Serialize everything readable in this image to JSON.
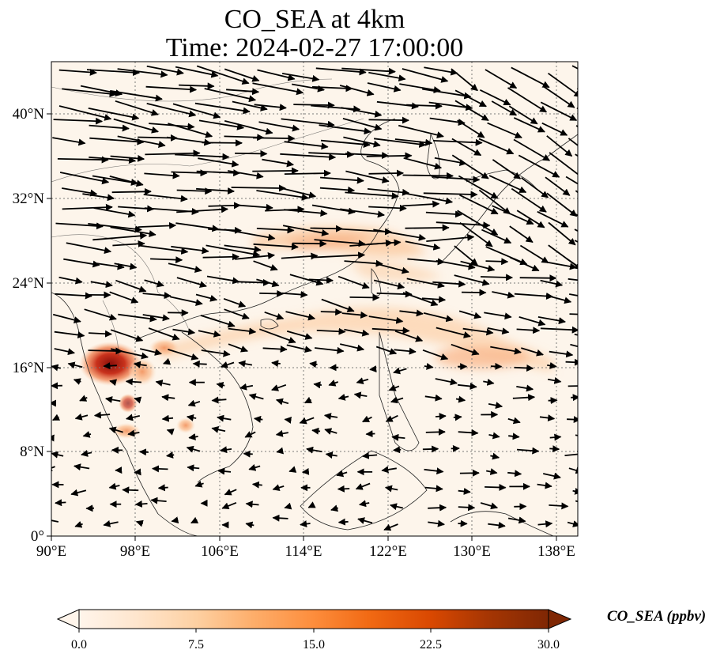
{
  "title": {
    "line1": "CO_SEA at 4km",
    "line2": "Time: 2024-02-27 17:00:00"
  },
  "map": {
    "lon_ticks": [
      "90°E",
      "98°E",
      "106°E",
      "114°E",
      "122°E",
      "130°E",
      "138°E"
    ],
    "lat_ticks": [
      "40°N",
      "32°N",
      "24°N",
      "16°N",
      "8°N",
      "0°"
    ],
    "lon_range": [
      90,
      140
    ],
    "lat_range": [
      0,
      45
    ],
    "gridlines": true,
    "field_colors": {
      "background": "#fdf5eb",
      "low": "#fde5cb",
      "mid": "#fcb98a",
      "high": "#e0542a",
      "peak": "#8b0f0a"
    },
    "vector_color": "#000000"
  },
  "colorbar": {
    "label": "CO_SEA (ppbv)",
    "ticks": [
      "0.0",
      "7.5",
      "15.0",
      "22.5",
      "30.0"
    ],
    "range": [
      0,
      30
    ],
    "colors": [
      "#fff5eb",
      "#fee6ce",
      "#fdd0a2",
      "#fdae6b",
      "#fd8d3c",
      "#f16913",
      "#d94801",
      "#a63603",
      "#7f2704"
    ],
    "extend": "both"
  }
}
